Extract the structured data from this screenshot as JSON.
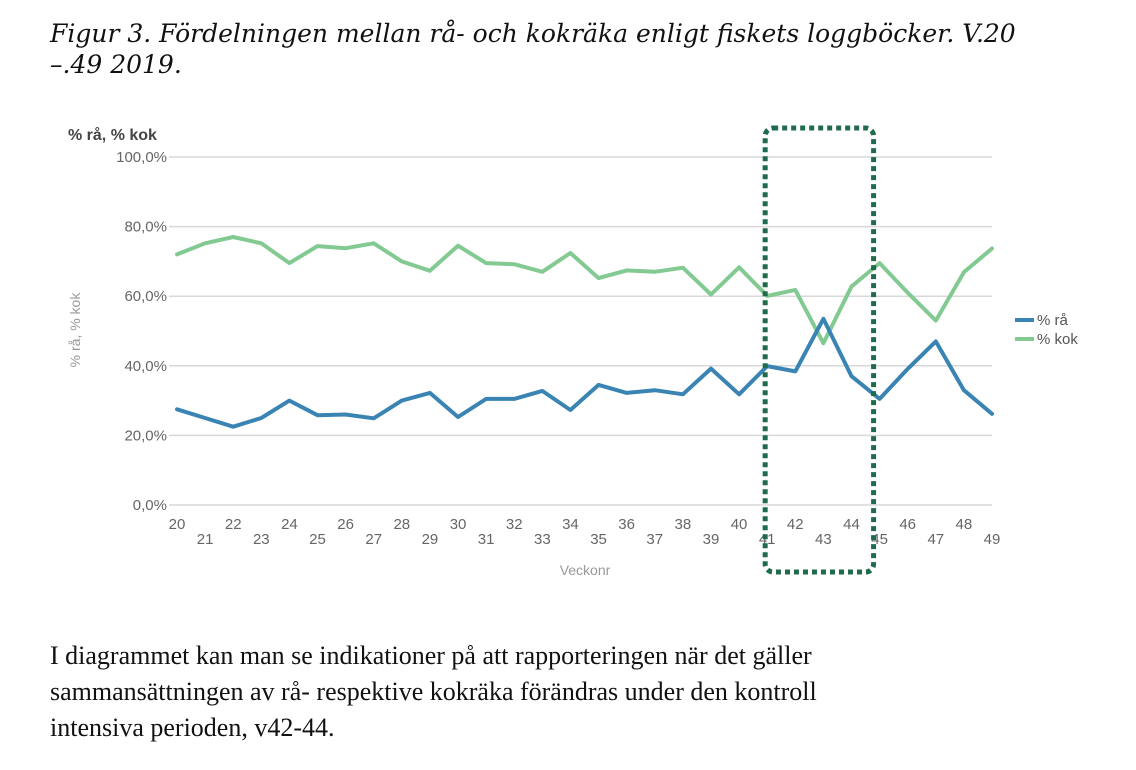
{
  "caption": {
    "line1": "Figur 3. Fördelningen mellan rå- och kokräka enligt fiskets loggböcker. V.20",
    "line2": "–.49 2019."
  },
  "paragraph": {
    "line1": "I diagrammet kan man se indikationer på att rapporteringen när det gäller",
    "line2": "sammansättningen av rå- respektive kokräka förändras under den kontroll",
    "line3": "intensiva perioden, v42-44."
  },
  "colors": {
    "ra": "#3a84b4",
    "kok": "#82ca91",
    "highlight": "#1f6b4c",
    "grid": "#d8d8d8"
  },
  "chart_data": {
    "type": "line",
    "title": "% rå, % kok",
    "xlabel": "Veckonr",
    "ylabel": "% rå, % kok",
    "x": [
      20,
      21,
      22,
      23,
      24,
      25,
      26,
      27,
      28,
      29,
      30,
      31,
      32,
      33,
      34,
      35,
      36,
      37,
      38,
      39,
      40,
      41,
      42,
      43,
      44,
      45,
      46,
      47,
      48,
      49
    ],
    "ylim": [
      0,
      100
    ],
    "yticks": [
      "0,0%",
      "20,0%",
      "40,0%",
      "60,0%",
      "80,0%",
      "100,0%"
    ],
    "grid": true,
    "legend_position": "right",
    "series": [
      {
        "name": "% rå",
        "color": "#3a84b4",
        "values": [
          27.5,
          25,
          22.5,
          25,
          30,
          25.8,
          26,
          24.9,
          30,
          32.2,
          25.3,
          30.5,
          30.5,
          32.8,
          27.3,
          34.5,
          32.2,
          33,
          31.8,
          39.2,
          31.8,
          39.9,
          38.4,
          53.5,
          37,
          30.5,
          39.1,
          47,
          33,
          26.2
        ]
      },
      {
        "name": "% kok",
        "color": "#82ca91",
        "values": [
          72,
          75.2,
          77,
          75.2,
          69.5,
          74.4,
          73.8,
          75.2,
          70,
          67.3,
          74.5,
          69.5,
          69.2,
          67,
          72.4,
          65.2,
          67.4,
          67,
          68.2,
          60.5,
          68.3,
          60.1,
          61.8,
          46.5,
          62.8,
          69.5,
          61,
          53,
          66.9,
          73.7
        ]
      }
    ],
    "annotation": "highlight weeks 41-45"
  }
}
